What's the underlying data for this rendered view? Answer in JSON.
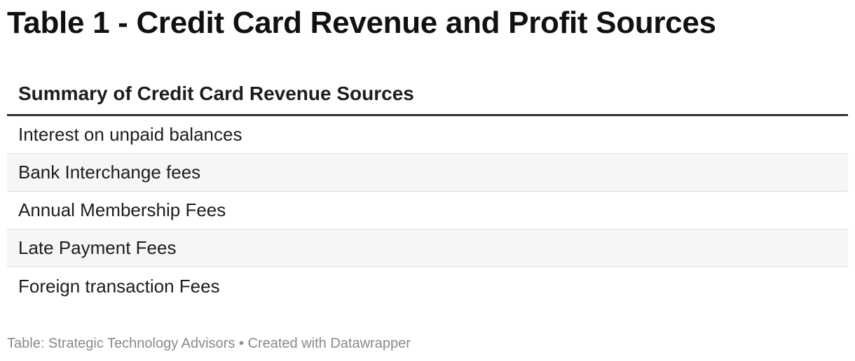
{
  "title": "Table 1 - Credit Card Revenue and Profit Sources",
  "chart_data": {
    "type": "table",
    "columns": [
      "Summary of Credit Card Revenue Sources"
    ],
    "rows": [
      [
        "Interest on unpaid balances"
      ],
      [
        "Bank Interchange fees"
      ],
      [
        "Annual Membership Fees"
      ],
      [
        "Late Payment Fees"
      ],
      [
        "Foreign transaction Fees"
      ]
    ]
  },
  "footer": {
    "source": "Table: Strategic Technology Advisors",
    "separator": "•",
    "credit": "Created with Datawrapper"
  },
  "colors": {
    "header_rule": "#333333",
    "row_alt_background": "#f6f6f6",
    "row_divider": "#dddddd",
    "footer_text": "#8a8a8a"
  }
}
